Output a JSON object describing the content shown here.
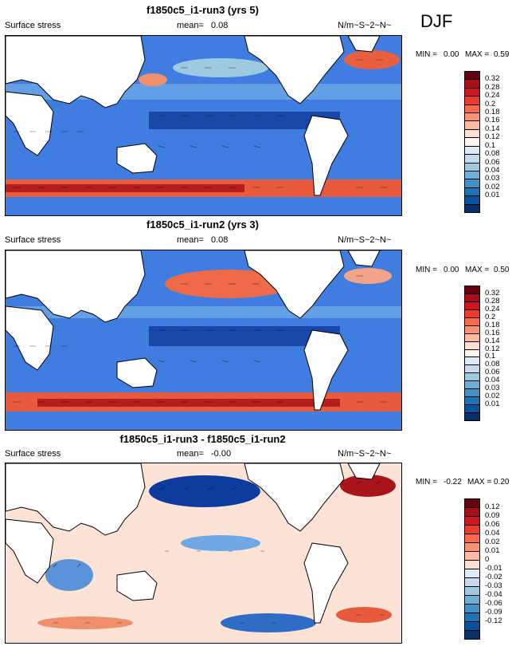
{
  "season": "DJF",
  "panels": [
    {
      "title": "f1850c5_i1-run3 (yrs 5)",
      "left_label": "Surface stress",
      "mean_label": "mean=",
      "mean_value": "0.08",
      "units": "N/m~S~2~N~",
      "min_label": "MIN =",
      "min_value": "0.00",
      "max_label": "MAX =",
      "max_value": "0.59",
      "colorbar": {
        "labels": [
          "0.32",
          "0.28",
          "0.24",
          "0.2",
          "0.18",
          "0.16",
          "0.14",
          "0.12",
          "0.1",
          "0.08",
          "0.06",
          "0.04",
          "0.03",
          "0.02",
          "0.01"
        ],
        "colors": [
          "#67000d",
          "#a50f15",
          "#cb181d",
          "#ef3b2c",
          "#fb6a4a",
          "#fc9272",
          "#fcbba1",
          "#fee0d2",
          "#fff5f0",
          "#deebf7",
          "#c6dbef",
          "#9ecae1",
          "#6baed6",
          "#4292c6",
          "#2171b5",
          "#08519c",
          "#08306b"
        ]
      }
    },
    {
      "title": "f1850c5_i1-run2 (yrs 3)",
      "left_label": "Surface stress",
      "mean_label": "mean=",
      "mean_value": "0.08",
      "units": "N/m~S~2~N~",
      "min_label": "MIN =",
      "min_value": "0.00",
      "max_label": "MAX =",
      "max_value": "0.50",
      "colorbar": {
        "labels": [
          "0.32",
          "0.28",
          "0.24",
          "0.2",
          "0.18",
          "0.16",
          "0.14",
          "0.12",
          "0.1",
          "0.08",
          "0.06",
          "0.04",
          "0.03",
          "0.02",
          "0.01"
        ],
        "colors": [
          "#67000d",
          "#a50f15",
          "#cb181d",
          "#ef3b2c",
          "#fb6a4a",
          "#fc9272",
          "#fcbba1",
          "#fee0d2",
          "#fff5f0",
          "#deebf7",
          "#c6dbef",
          "#9ecae1",
          "#6baed6",
          "#4292c6",
          "#2171b5",
          "#08519c",
          "#08306b"
        ]
      }
    },
    {
      "title": "f1850c5_i1-run3 - f1850c5_i1-run2",
      "left_label": "Surface stress",
      "mean_label": "mean=",
      "mean_value": "-0.00",
      "units": "N/m~S~2~N~",
      "min_label": "MIN =",
      "min_value": "-0.22",
      "max_label": "MAX =",
      "max_value": "0.20",
      "colorbar": {
        "labels": [
          "0.12",
          "0.09",
          "0.06",
          "0.04",
          "0.02",
          "0.01",
          "0",
          "-0.01",
          "-0.02",
          "-0.03",
          "-0.04",
          "-0.06",
          "-0.09",
          "-0.12"
        ],
        "colors": [
          "#67000d",
          "#a50f15",
          "#cb181d",
          "#ef3b2c",
          "#fb6a4a",
          "#fc9272",
          "#fcbba1",
          "#fee0d2",
          "#deebf7",
          "#c6dbef",
          "#9ecae1",
          "#6baed6",
          "#4292c6",
          "#2171b5",
          "#08519c",
          "#08306b"
        ]
      }
    }
  ]
}
